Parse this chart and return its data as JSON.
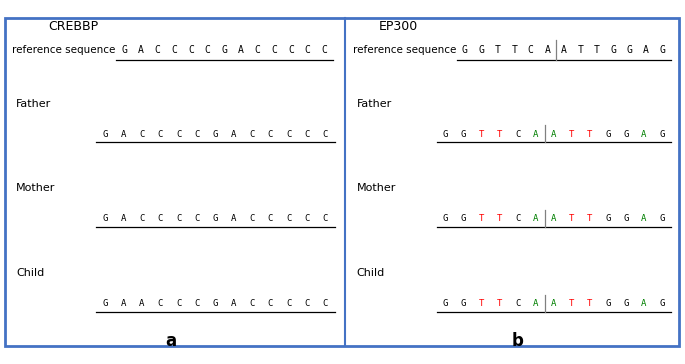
{
  "panel_a_title": "CREBBP",
  "panel_b_title": "EP300",
  "ref_label": "reference sequence",
  "panel_a_ref_seq": [
    "G",
    "A",
    "C",
    "C",
    "C",
    "C",
    "G",
    "A",
    "C",
    "C",
    "C",
    "C",
    "C"
  ],
  "panel_b_ref_seq": [
    "G",
    "G",
    "T",
    "T",
    "C",
    "A",
    "A",
    "T",
    "T",
    "G",
    "G",
    "A",
    "G"
  ],
  "panel_a_samples": [
    {
      "label": "Father",
      "seq": [
        "G",
        "A",
        "C",
        "C",
        "C",
        "C",
        "G",
        "A",
        "C",
        "C",
        "C",
        "C",
        "C"
      ],
      "variant": "normal"
    },
    {
      "label": "Mother",
      "seq": [
        "G",
        "A",
        "C",
        "C",
        "C",
        "C",
        "G",
        "A",
        "C",
        "C",
        "C",
        "C",
        "C"
      ],
      "variant": "normal"
    },
    {
      "label": "Child",
      "seq": [
        "G",
        "A",
        "A",
        "C",
        "C",
        "C",
        "G",
        "A",
        "C",
        "C",
        "C",
        "C",
        "C"
      ],
      "variant": "child"
    }
  ],
  "panel_b_samples": [
    {
      "label": "Father",
      "seq": [
        "G",
        "G",
        "T",
        "T",
        "C",
        "A",
        "A",
        "T",
        "T",
        "G",
        "G",
        "A",
        "G"
      ]
    },
    {
      "label": "Mother",
      "seq": [
        "G",
        "G",
        "T",
        "T",
        "C",
        "A",
        "A",
        "T",
        "T",
        "G",
        "G",
        "A",
        "G"
      ]
    },
    {
      "label": "Child",
      "seq": [
        "G",
        "G",
        "T",
        "T",
        "C",
        "A",
        "A",
        "T",
        "T",
        "G",
        "G",
        "A",
        "G"
      ]
    }
  ],
  "base_colors": {
    "G": "black",
    "A": "green",
    "C": "blue",
    "T": "deeppink"
  },
  "ep300_base_colors": {
    "G": "black",
    "A": "green",
    "C": "blue",
    "T": "deeppink"
  },
  "seq_label_colors_b": {
    "G": "black",
    "A": "green",
    "C": "black",
    "T": "red"
  },
  "border_color": "#4472c4",
  "divider_color": "#4472c4",
  "label_a": "a",
  "label_b": "b",
  "bg_color": "white",
  "fig_width": 6.85,
  "fig_height": 3.64,
  "dpi": 100
}
